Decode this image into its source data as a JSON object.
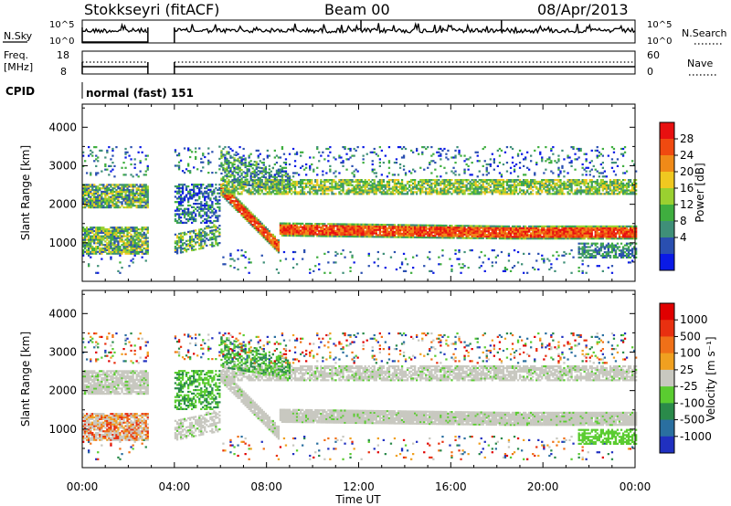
{
  "header": {
    "station": "Stokkseyri (fitACF)",
    "beam": "Beam 00",
    "date": "08/Apr/2013"
  },
  "noise_panel": {
    "left_label": "N.Sky",
    "right_label": "N.Search",
    "left_ticks": [
      "10^5",
      "10^0"
    ],
    "right_ticks": [
      "10^5",
      "10^0"
    ]
  },
  "freq_panel": {
    "left_label_line1": "Freq.",
    "left_label_line2": "[MHz]",
    "left_ticks": [
      "18",
      "8"
    ],
    "right_label": "Nave",
    "right_ticks": [
      "60",
      "0"
    ]
  },
  "cpid": {
    "label": "CPID",
    "value": "normal (fast) 151"
  },
  "chart_data": [
    {
      "type": "heatmap",
      "ylabel": "Slant Range [km]",
      "ylim": [
        0,
        4600
      ],
      "y_ticks": [
        1000,
        2000,
        3000,
        4000
      ],
      "colorbar_label": "Power [dB]",
      "colorbar_ticks": [
        "28",
        "24",
        "20",
        "16",
        "12",
        "8",
        "4"
      ],
      "colors": [
        "#0a1ae6",
        "#2a4fb0",
        "#3f8f78",
        "#3fae3f",
        "#9ad030",
        "#f0c820",
        "#f08a18",
        "#f04a10",
        "#e81010"
      ],
      "data_gap_hours": [
        2.85,
        4.0
      ]
    },
    {
      "type": "heatmap",
      "ylabel": "Slant Range [km]",
      "ylim": [
        0,
        4600
      ],
      "y_ticks": [
        1000,
        2000,
        3000,
        4000
      ],
      "colorbar_label": "Velocity [m s⁻¹]",
      "colorbar_ticks": [
        "1000",
        "500",
        "100",
        "25",
        "-25",
        "-100",
        "-500",
        "-1000"
      ],
      "colors": [
        "#2030c0",
        "#2a6fa0",
        "#2a8a4a",
        "#5acc30",
        "#c8c8c0",
        "#f0a020",
        "#f07018",
        "#e83010",
        "#e00000"
      ],
      "data_gap_hours": [
        2.85,
        4.0
      ]
    }
  ],
  "x_axis": {
    "label": "Time UT",
    "ticks": [
      "00:00",
      "04:00",
      "08:00",
      "12:00",
      "16:00",
      "20:00",
      "00:00"
    ]
  }
}
